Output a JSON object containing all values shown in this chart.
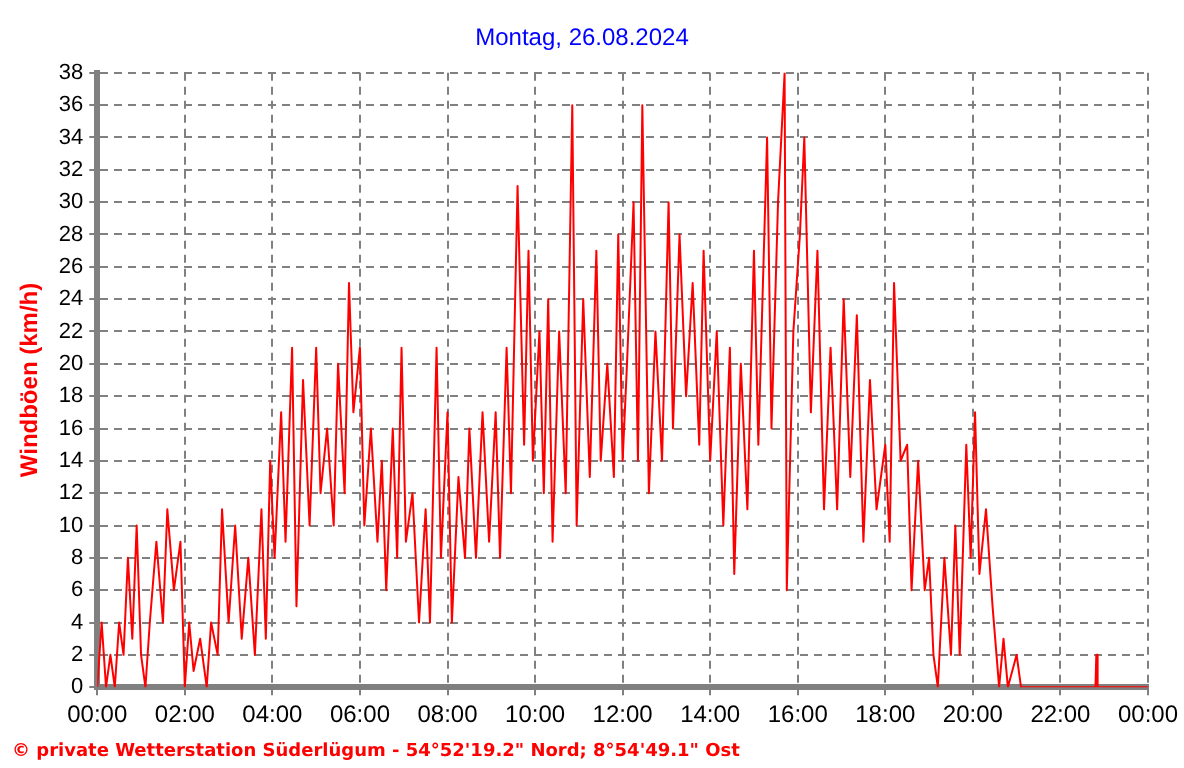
{
  "chart_data": {
    "type": "line",
    "title": "Montag, 26.08.2024",
    "ylabel": "Windböen (km/h)",
    "annotations": [
      "© private Wetterstation Süderlügum - 54°52'19.2\" Nord; 8°54'49.1\" Ost"
    ],
    "x": [
      0,
      0.1,
      0.2,
      0.3,
      0.4,
      0.5,
      0.6,
      0.7,
      0.8,
      0.9,
      1.0,
      1.1,
      1.2,
      1.35,
      1.5,
      1.6,
      1.75,
      1.9,
      2.0,
      2.1,
      2.2,
      2.35,
      2.5,
      2.6,
      2.75,
      2.85,
      3.0,
      3.15,
      3.3,
      3.45,
      3.6,
      3.75,
      3.85,
      3.95,
      4.05,
      4.2,
      4.3,
      4.45,
      4.55,
      4.7,
      4.85,
      5.0,
      5.1,
      5.25,
      5.4,
      5.5,
      5.65,
      5.75,
      5.85,
      6.0,
      6.1,
      6.25,
      6.4,
      6.5,
      6.6,
      6.75,
      6.85,
      6.95,
      7.05,
      7.2,
      7.35,
      7.5,
      7.6,
      7.75,
      7.85,
      8.0,
      8.1,
      8.25,
      8.4,
      8.5,
      8.65,
      8.8,
      8.95,
      9.1,
      9.2,
      9.35,
      9.45,
      9.6,
      9.75,
      9.85,
      9.95,
      10.1,
      10.2,
      10.3,
      10.4,
      10.55,
      10.7,
      10.85,
      10.95,
      11.1,
      11.25,
      11.4,
      11.5,
      11.65,
      11.8,
      11.9,
      12.0,
      12.1,
      12.25,
      12.35,
      12.45,
      12.6,
      12.75,
      12.9,
      13.05,
      13.15,
      13.3,
      13.45,
      13.6,
      13.75,
      13.85,
      14.0,
      14.15,
      14.3,
      14.45,
      14.55,
      14.7,
      14.85,
      15.0,
      15.1,
      15.3,
      15.4,
      15.55,
      15.7,
      15.75,
      15.9,
      16.05,
      16.15,
      16.3,
      16.45,
      16.6,
      16.75,
      16.9,
      17.05,
      17.2,
      17.35,
      17.5,
      17.65,
      17.8,
      18.0,
      18.1,
      18.2,
      18.35,
      18.5,
      18.6,
      18.75,
      18.9,
      19.0,
      19.1,
      19.2,
      19.35,
      19.5,
      19.6,
      19.7,
      19.85,
      19.95,
      20.05,
      20.15,
      20.3,
      20.45,
      20.6,
      20.7,
      20.8,
      21.0,
      21.1,
      22.0,
      22.8,
      22.82,
      22.85,
      24.0
    ],
    "series": [
      {
        "color": "#ff0000",
        "values": [
          0,
          4,
          0,
          2,
          0,
          4,
          2,
          8,
          3,
          10,
          2,
          0,
          4,
          9,
          4,
          11,
          6,
          9,
          0,
          4,
          1,
          3,
          0,
          4,
          2,
          11,
          4,
          10,
          3,
          8,
          2,
          11,
          3,
          14,
          8,
          17,
          9,
          21,
          5,
          19,
          10,
          21,
          12,
          16,
          10,
          20,
          12,
          25,
          17,
          21,
          10,
          16,
          9,
          14,
          6,
          16,
          8,
          21,
          9,
          12,
          4,
          11,
          4,
          21,
          8,
          17,
          4,
          13,
          8,
          16,
          8,
          17,
          9,
          17,
          8,
          21,
          12,
          31,
          15,
          27,
          14,
          22,
          12,
          24,
          9,
          22,
          12,
          36,
          10,
          24,
          13,
          27,
          14,
          20,
          13,
          28,
          14,
          20,
          30,
          14,
          36,
          12,
          22,
          14,
          30,
          16,
          28,
          18,
          25,
          15,
          27,
          14,
          22,
          10,
          21,
          7,
          20,
          11,
          27,
          15,
          34,
          16,
          30,
          38,
          6,
          22,
          28,
          34,
          17,
          27,
          11,
          21,
          11,
          24,
          13,
          23,
          9,
          19,
          11,
          15,
          9,
          25,
          14,
          15,
          6,
          14,
          6,
          8,
          2,
          0,
          8,
          2,
          10,
          2,
          15,
          8,
          17,
          7,
          11,
          5,
          0,
          3,
          0,
          2,
          0,
          0,
          0,
          2,
          0,
          0
        ]
      }
    ],
    "xlim": [
      0,
      24
    ],
    "xticks": [
      {
        "value": 0,
        "label": "00:00"
      },
      {
        "value": 2,
        "label": "02:00"
      },
      {
        "value": 4,
        "label": "04:00"
      },
      {
        "value": 6,
        "label": "06:00"
      },
      {
        "value": 8,
        "label": "08:00"
      },
      {
        "value": 10,
        "label": "10:00"
      },
      {
        "value": 12,
        "label": "12:00"
      },
      {
        "value": 14,
        "label": "14:00"
      },
      {
        "value": 16,
        "label": "16:00"
      },
      {
        "value": 18,
        "label": "18:00"
      },
      {
        "value": 20,
        "label": "20:00"
      },
      {
        "value": 22,
        "label": "22:00"
      },
      {
        "value": 24,
        "label": "00:00"
      }
    ],
    "ylim": [
      0,
      38
    ],
    "yticks": [
      0,
      2,
      4,
      6,
      8,
      10,
      12,
      14,
      16,
      18,
      20,
      22,
      24,
      26,
      28,
      30,
      32,
      34,
      36,
      38
    ],
    "grid": true,
    "legend": false,
    "marker": "none",
    "line_style": "solid"
  }
}
